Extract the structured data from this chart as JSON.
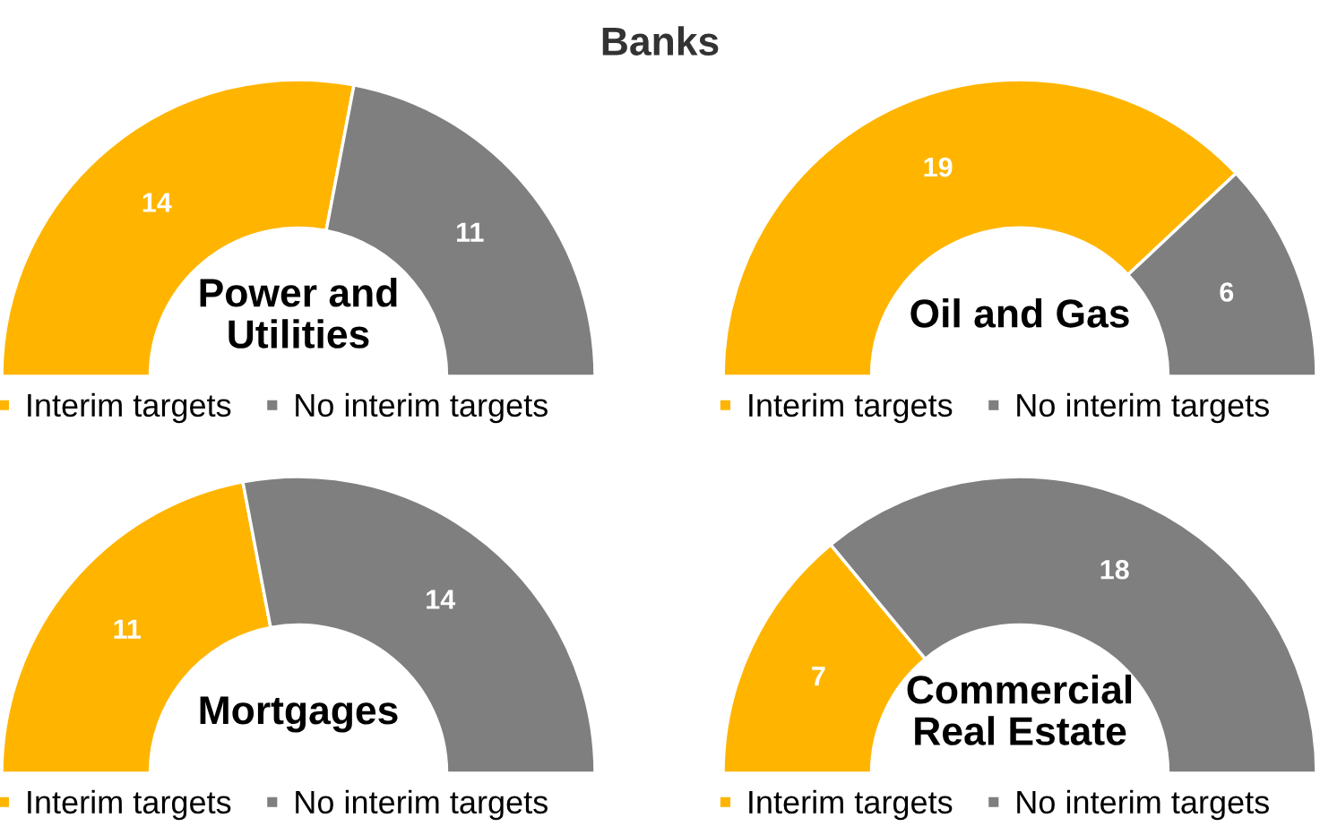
{
  "chart_data": [
    {
      "type": "other",
      "title": "Banks"
    },
    {
      "type": "donut",
      "title": "Power and\nUtilities",
      "categories": [
        "Interim targets",
        "No interim targets"
      ],
      "values": [
        14,
        11
      ],
      "colors": [
        "#ffb500",
        "#7f7f7f"
      ],
      "data_labels": true,
      "legend": "bottom left"
    },
    {
      "type": "donut",
      "title": "Oil and Gas",
      "categories": [
        "Interim targets",
        "No interim targets"
      ],
      "values": [
        19,
        6
      ],
      "colors": [
        "#ffb500",
        "#7f7f7f"
      ],
      "data_labels": true,
      "legend": "bottom left"
    },
    {
      "type": "donut",
      "title": "Mortgages",
      "categories": [
        "Interim targets",
        "No interim targets"
      ],
      "values": [
        11,
        14
      ],
      "colors": [
        "#ffb500",
        "#7f7f7f"
      ],
      "data_labels": true,
      "legend": "bottom left"
    },
    {
      "type": "donut",
      "title": "Commercial\nReal Estate",
      "categories": [
        "Interim targets",
        "No interim targets"
      ],
      "values": [
        7,
        18
      ],
      "colors": [
        "#ffb500",
        "#7f7f7f"
      ],
      "data_labels": true,
      "legend": "bottom left"
    }
  ]
}
